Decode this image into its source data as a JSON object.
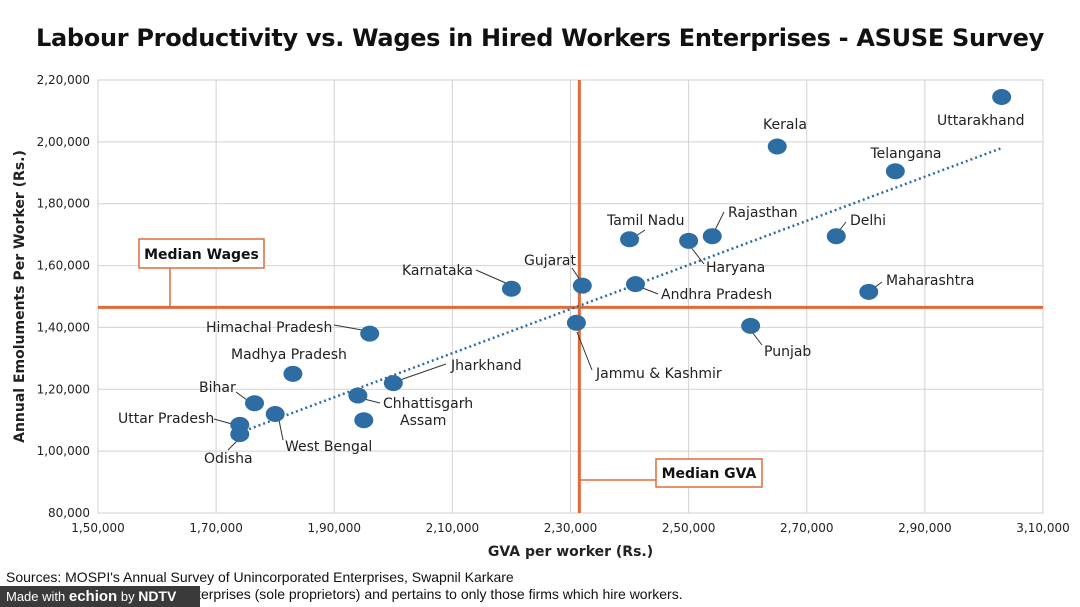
{
  "chart_data": {
    "type": "scatter",
    "title": "Labour Productivity vs. Wages in Hired Workers Enterprises - ASUSE Survey",
    "xlabel": "GVA per worker (Rs.)",
    "ylabel": "Annual Emoluments Per Worker (Rs.)",
    "xlim": [
      150000,
      310000
    ],
    "ylim": [
      80000,
      220000
    ],
    "x_ticks": [
      150000,
      170000,
      190000,
      210000,
      230000,
      250000,
      270000,
      290000,
      310000
    ],
    "x_tick_labels": [
      "1,50,000",
      "1,70,000",
      "1,90,000",
      "2,10,000",
      "2,30,000",
      "2,50,000",
      "2,70,000",
      "2,90,000",
      "3,10,000"
    ],
    "y_ticks": [
      80000,
      100000,
      120000,
      140000,
      160000,
      180000,
      200000,
      220000
    ],
    "y_tick_labels": [
      "80,000",
      "1,00,000",
      "1,20,000",
      "1,40,000",
      "1,60,000",
      "1,80,000",
      "2,00,000",
      "2,20,000"
    ],
    "grid": true,
    "point_color": "#2e6da4",
    "trend_color": "#2e6da4",
    "median_color": "#e06b3a",
    "median_wages": {
      "label": "Median Wages",
      "value": 146500
    },
    "median_gva": {
      "label": "Median GVA",
      "value": 231500
    },
    "trendline": {
      "x": [
        174000,
        303000
      ],
      "y": [
        106000,
        198000
      ]
    },
    "points": [
      {
        "label": "Uttarakhand",
        "x": 303000,
        "y": 214500
      },
      {
        "label": "Kerala",
        "x": 265000,
        "y": 198500
      },
      {
        "label": "Telangana",
        "x": 285000,
        "y": 190500
      },
      {
        "label": "Delhi",
        "x": 275000,
        "y": 169500
      },
      {
        "label": "Maharashtra",
        "x": 280500,
        "y": 151500
      },
      {
        "label": "Rajasthan",
        "x": 254000,
        "y": 169500
      },
      {
        "label": "Haryana",
        "x": 250000,
        "y": 168000
      },
      {
        "label": "Tamil Nadu",
        "x": 240000,
        "y": 168500
      },
      {
        "label": "Andhra Pradesh",
        "x": 241000,
        "y": 154000
      },
      {
        "label": "Gujarat",
        "x": 232000,
        "y": 153500
      },
      {
        "label": "Karnataka",
        "x": 220000,
        "y": 152500
      },
      {
        "label": "Jammu & Kashmir",
        "x": 231000,
        "y": 141500
      },
      {
        "label": "Punjab",
        "x": 260500,
        "y": 140500
      },
      {
        "label": "Himachal Pradesh",
        "x": 196000,
        "y": 138000
      },
      {
        "label": "Madhya Pradesh",
        "x": 183000,
        "y": 125000
      },
      {
        "label": "Jharkhand",
        "x": 200000,
        "y": 122000
      },
      {
        "label": "Chhattisgarh",
        "x": 194000,
        "y": 118000
      },
      {
        "label": "Assam",
        "x": 195000,
        "y": 110000
      },
      {
        "label": "Bihar",
        "x": 176500,
        "y": 115500
      },
      {
        "label": "West Bengal",
        "x": 180000,
        "y": 112000
      },
      {
        "label": "Uttar Pradesh",
        "x": 174000,
        "y": 108500
      },
      {
        "label": "Odisha",
        "x": 174000,
        "y": 105500
      }
    ]
  },
  "footer": {
    "source_line": "Sources: MOSPI's Annual Survey of Unincorporated Enterprises, Swapnil Karkare",
    "note_line": "yned Account Enterprises (sole proprietors) and pertains to only those firms which hire workers."
  },
  "badge": {
    "prefix": "Made with",
    "logo": "echion",
    "by": "by",
    "brand": "NDTV"
  }
}
